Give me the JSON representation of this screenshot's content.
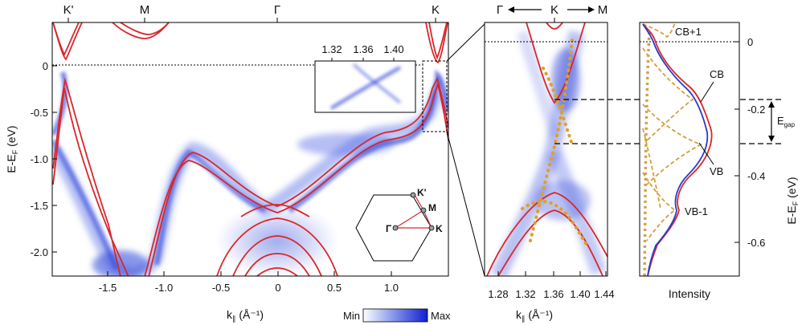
{
  "colors": {
    "band": "#d9262a",
    "fit_gold": "#e0a020",
    "fit_gold_dash": "#d4a040",
    "edc_blue": "#2a3bc8",
    "edc_red": "#d9262a",
    "map_min": "#ffffff",
    "map_max": "#1020d0"
  },
  "panel_a": {
    "top_labels": [
      "K'",
      "M",
      "Γ",
      "K"
    ],
    "x_tick_labels": [
      "-1.5",
      "-1.0",
      "-0.5",
      "0",
      "0.5",
      "1.0"
    ],
    "y_tick_labels": [
      "0",
      "-0.5",
      "-1.0",
      "-1.5",
      "-2.0"
    ],
    "xlabel_main": "k",
    "xlabel_sub": "∥",
    "xlabel_unit": " (Å⁻¹)",
    "ylabel_main": "E-E",
    "ylabel_sub": "F",
    "ylabel_unit": " (eV)",
    "colorbar_min": "Min",
    "colorbar_max": "Max",
    "inset_ticks": [
      "1.32",
      "1.36",
      "1.40"
    ],
    "bz_labels": {
      "kprime": "K'",
      "m": "M",
      "gamma": "Γ",
      "k": "K"
    }
  },
  "panel_b": {
    "top_left": "Γ",
    "top_mid": "K",
    "top_right": "M",
    "x_tick_labels": [
      "1.28",
      "1.32",
      "1.36",
      "1.40",
      "1.44"
    ],
    "xlabel_main": "k",
    "xlabel_sub": "∥",
    "xlabel_unit": " (Å⁻¹)"
  },
  "panel_c": {
    "label_cb1": "CB+1",
    "label_cb": "CB",
    "label_vb": "VB",
    "label_vb1": "VB-1",
    "egap_main": "E",
    "egap_sub": "gap",
    "y_tick_labels": [
      "0",
      "-0.2",
      "-0.4",
      "-0.6"
    ],
    "xlabel": "Intensity",
    "ylabel_main": "E-E",
    "ylabel_sub": "F",
    "ylabel_unit": " (eV)"
  }
}
